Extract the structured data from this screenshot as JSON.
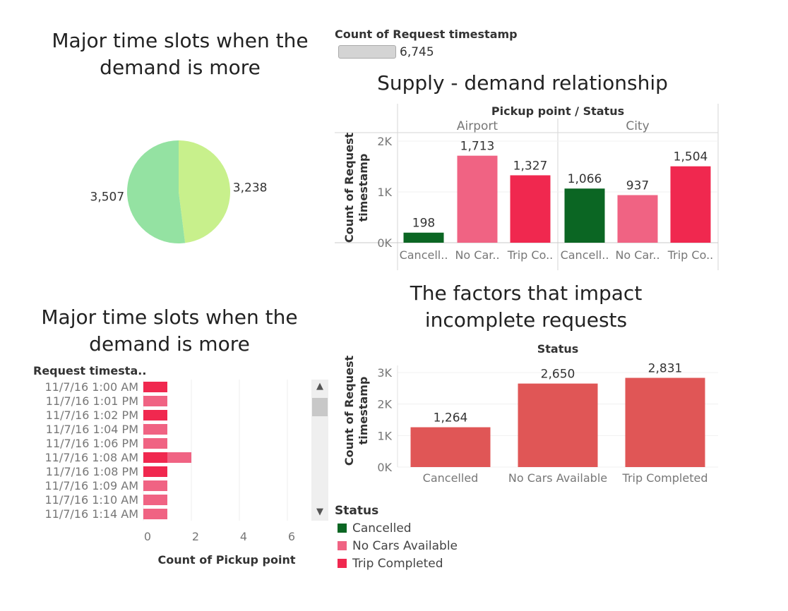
{
  "pie_title": "Major time slots when the demand is more",
  "size_legend": {
    "title": "Count of Request timestamp",
    "value": "6,745"
  },
  "bar_title": "Major time slots when the demand is more",
  "supply_title": "Supply - demand relationship",
  "factors_title": "The factors that impact incomplete requests",
  "legend": {
    "title": "Status",
    "items": [
      {
        "label": "Cancelled",
        "color": "#0b6623"
      },
      {
        "label": "No Cars Available",
        "color": "#f06383"
      },
      {
        "label": "Trip Completed",
        "color": "#f0284f"
      }
    ]
  },
  "chart_data": [
    {
      "type": "pie",
      "title": "Major time slots when the demand is more",
      "slices": [
        {
          "value": 3238,
          "label": "3,238",
          "color": "#c8f08c"
        },
        {
          "value": 3507,
          "label": "3,507",
          "color": "#94e2a2"
        }
      ]
    },
    {
      "type": "bar",
      "title": "Supply - demand relationship",
      "header": "Pickup point  /  Status",
      "groups": [
        "Airport",
        "City"
      ],
      "categories": [
        "Cancell..",
        "No Car..",
        "Trip Co..",
        "Cancell..",
        "No Car..",
        "Trip Co.."
      ],
      "values": [
        198,
        1713,
        1327,
        1066,
        937,
        1504
      ],
      "labels": [
        "198",
        "1,713",
        "1,327",
        "1,066",
        "937",
        "1,504"
      ],
      "colors": [
        "#0b6623",
        "#f06383",
        "#f0284f",
        "#0b6623",
        "#f06383",
        "#f0284f"
      ],
      "ylabel": "Count of Request timestamp",
      "yticks": [
        "0K",
        "1K",
        "2K"
      ],
      "ylim": [
        0,
        2000
      ]
    },
    {
      "type": "bar",
      "orientation": "horizontal",
      "title": "Major time slots when the demand is more",
      "row_header": "Request timesta..",
      "categories": [
        "11/7/16 1:00 AM",
        "11/7/16 1:01 PM",
        "11/7/16 1:02 PM",
        "11/7/16 1:04 PM",
        "11/7/16 1:06 PM",
        "11/7/16 1:08 AM",
        "11/7/16 1:08 PM",
        "11/7/16 1:09 AM",
        "11/7/16 1:10 AM",
        "11/7/16 1:14 AM"
      ],
      "series": [
        {
          "name": "Trip Completed",
          "values": [
            1,
            0,
            1,
            0,
            0,
            1,
            1,
            0,
            0,
            0
          ],
          "color": "#f0284f"
        },
        {
          "name": "No Cars Available",
          "values": [
            0,
            1,
            0,
            1,
            1,
            1,
            0,
            1,
            1,
            1
          ],
          "color": "#f06383"
        }
      ],
      "xlabel": "Count of Pickup point",
      "xticks": [
        "0",
        "2",
        "4",
        "6"
      ],
      "xlim": [
        0,
        7
      ]
    },
    {
      "type": "bar",
      "title": "The factors that impact incomplete requests",
      "header": "Status",
      "categories": [
        "Cancelled",
        "No Cars Available",
        "Trip Completed"
      ],
      "values": [
        1264,
        2650,
        2831
      ],
      "labels": [
        "1,264",
        "2,650",
        "2,831"
      ],
      "color": "#e05656",
      "ylabel": "Count of Request timestamp",
      "yticks": [
        "0K",
        "1K",
        "2K",
        "3K"
      ],
      "ylim": [
        0,
        3000
      ]
    }
  ]
}
